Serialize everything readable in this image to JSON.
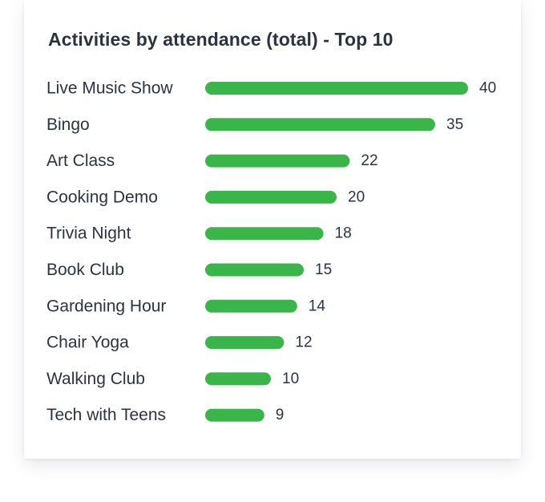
{
  "chart_data": {
    "type": "bar",
    "orientation": "horizontal",
    "title": "Activities by attendance (total) - Top 10",
    "categories": [
      "Live Music Show",
      "Bingo",
      "Art Class",
      "Cooking Demo",
      "Trivia Night",
      "Book Club",
      "Gardening Hour",
      "Chair Yoga",
      "Walking Club",
      "Tech with Teens"
    ],
    "values": [
      40,
      35,
      22,
      20,
      18,
      15,
      14,
      12,
      10,
      9
    ],
    "xlim": [
      0,
      40
    ],
    "bar_color": "#3ab54a",
    "grid": false,
    "data_labels": true
  }
}
